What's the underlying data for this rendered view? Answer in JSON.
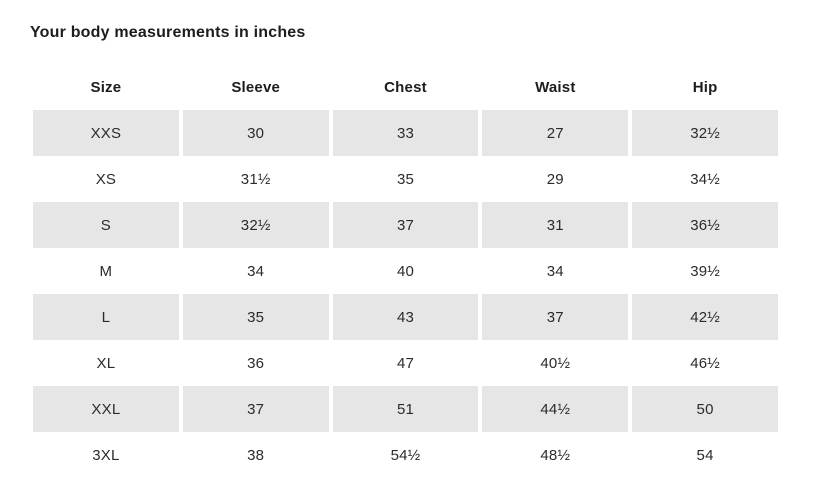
{
  "page": {
    "title": "Your body measurements in inches"
  },
  "table": {
    "columns": [
      "Size",
      "Sleeve",
      "Chest",
      "Waist",
      "Hip"
    ],
    "rows": [
      [
        "XXS",
        "30",
        "33",
        "27",
        "32½"
      ],
      [
        "XS",
        "31½",
        "35",
        "29",
        "34½"
      ],
      [
        "S",
        "32½",
        "37",
        "31",
        "36½"
      ],
      [
        "M",
        "34",
        "40",
        "34",
        "39½"
      ],
      [
        "L",
        "35",
        "43",
        "37",
        "42½"
      ],
      [
        "XL",
        "36",
        "47",
        "40½",
        "46½"
      ],
      [
        "XXL",
        "37",
        "51",
        "44½",
        "50"
      ],
      [
        "3XL",
        "38",
        "54½",
        "48½",
        "54"
      ]
    ]
  },
  "colors": {
    "shaded_row_bg": "#e6e6e6",
    "text_primary": "#1d1d1d",
    "text_cell": "#2b2b2b",
    "page_bg": "#ffffff"
  }
}
